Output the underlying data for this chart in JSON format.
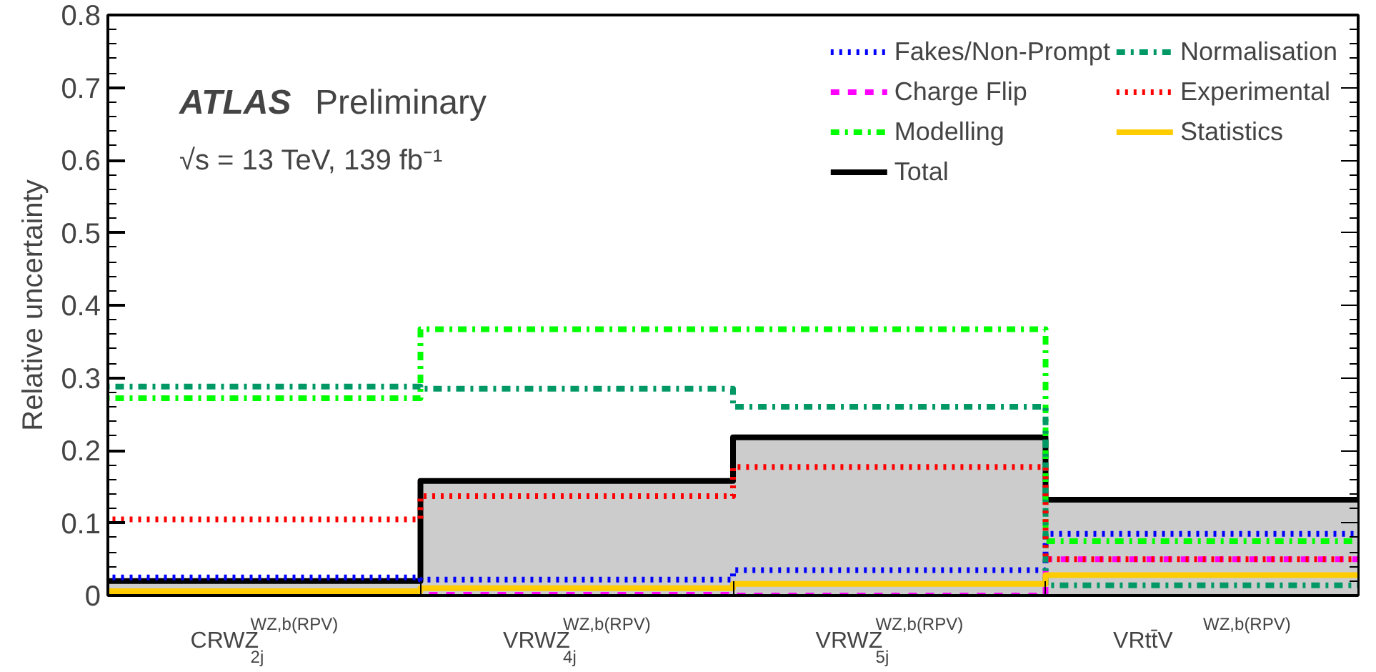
{
  "chart_data": {
    "type": "step",
    "ylabel": "Relative uncertainty",
    "categories": [
      "CRWZ$^{WZ,b(RPV)}$$_{2j}$",
      "VRWZ$^{WZ,b(RPV)}$$_{4j}$",
      "VRWZ$^{WZ,b(RPV)}$$_{5j}$",
      "VRtt̄V$^{WZ,b(RPV)}$"
    ],
    "series": [
      {
        "name": "Total",
        "type": "area",
        "color": "#000000",
        "line_style": "solid",
        "values": [
          0.02,
          0.158,
          0.218,
          0.132
        ]
      },
      {
        "name": "Fakes/Non-Prompt",
        "color": "#0000ff",
        "line_style": "dotted",
        "values": [
          0.025,
          0.022,
          0.035,
          0.085
        ]
      },
      {
        "name": "Charge Flip",
        "color": "#ff00ff",
        "line_style": "dashed",
        "values": [
          0.0,
          0.001,
          0.0,
          0.05
        ]
      },
      {
        "name": "Modelling",
        "color": "#00ff00",
        "line_style": "dashdot",
        "values": [
          0.272,
          0.367,
          0.367,
          0.075
        ]
      },
      {
        "name": "Normalisation",
        "color": "#009966",
        "line_style": "dashdot",
        "values": [
          0.288,
          0.285,
          0.26,
          0.014
        ]
      },
      {
        "name": "Experimental",
        "color": "#ff0000",
        "line_style": "dotted",
        "values": [
          0.105,
          0.137,
          0.177,
          0.05
        ]
      },
      {
        "name": "Statistics",
        "color": "#ffcc00",
        "line_style": "solid",
        "values": [
          0.006,
          0.01,
          0.016,
          0.028
        ]
      }
    ],
    "ylim": [
      0,
      0.8
    ],
    "yticks": [
      {
        "value": 0,
        "label": "0"
      },
      0.1,
      0.2,
      0.3,
      0.4,
      0.5,
      0.6,
      0.7,
      0.8
    ],
    "grid": false,
    "legend": "top right",
    "annotations": [
      "ATLAS",
      "Preliminary",
      "√s = 13 TeV, 139 fb⁻¹"
    ]
  }
}
